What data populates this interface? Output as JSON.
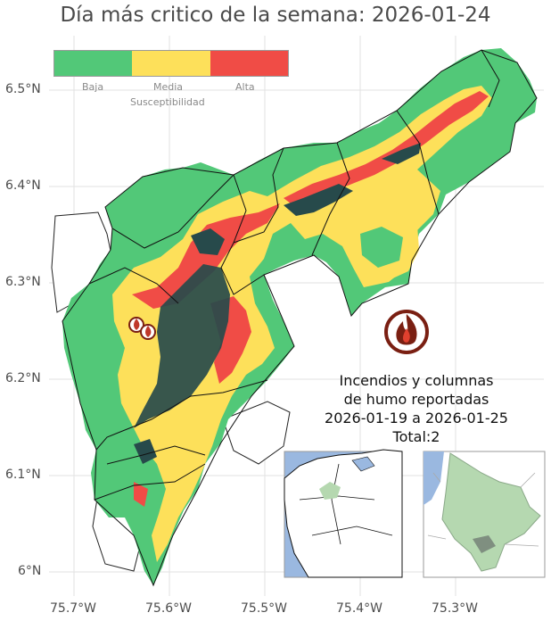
{
  "title": "Día más critico de la semana: 2026-01-24",
  "legend": {
    "title": "Susceptibilidad",
    "levels": [
      {
        "label": "Baja",
        "color": "#52c878"
      },
      {
        "label": "Media",
        "color": "#fde05a"
      },
      {
        "label": "Alta",
        "color": "#f04c46"
      }
    ]
  },
  "axes": {
    "lat_ticks": [
      "6.5°N",
      "6.4°N",
      "6.3°N",
      "6.2°N",
      "6.1°N",
      "6°N"
    ],
    "lon_ticks": [
      "75.7°W",
      "75.6°W",
      "75.5°W",
      "75.4°W",
      "75.3°W"
    ]
  },
  "report": {
    "line1": "Incendios y columnas",
    "line2": "de humo reportadas",
    "line3": "2026-01-19 a 2026-01-25",
    "line4": "Total:2"
  },
  "fire_reports": [
    {
      "lon": -75.634,
      "lat": 6.243
    },
    {
      "lon": -75.622,
      "lat": 6.236
    }
  ],
  "colors": {
    "baja": "#52c878",
    "media": "#fde05a",
    "alta": "#f04c46",
    "urban": "#274a4b",
    "water": "#9ab8e0",
    "region": "#b5d8b0",
    "fire_icon": "#7a1f12"
  },
  "icons": [
    "fire-icon"
  ]
}
